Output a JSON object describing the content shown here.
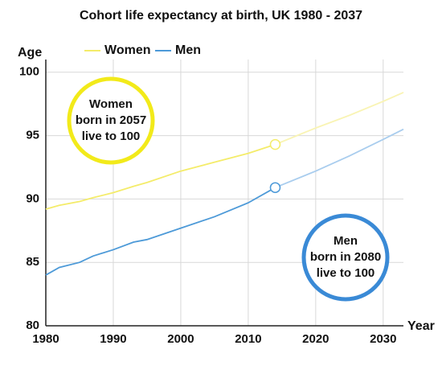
{
  "chart_data": {
    "type": "line",
    "title": "Cohort life expectancy at birth, UK 1980 - 2037",
    "y_label": "Age",
    "x_label": "Year",
    "x": [
      1980,
      1982,
      1985,
      1987,
      1990,
      1993,
      1995,
      2000,
      2005,
      2010,
      2014,
      2020,
      2025,
      2030,
      2033
    ],
    "series": [
      {
        "name": "Women",
        "color": "#f4ec6a",
        "projection_color": "#f9f4b4",
        "values": [
          89.2,
          89.5,
          89.8,
          90.1,
          90.5,
          91.0,
          91.3,
          92.2,
          92.9,
          93.6,
          94.3,
          null,
          null,
          null,
          null
        ],
        "projection": [
          null,
          null,
          null,
          null,
          null,
          null,
          null,
          null,
          null,
          null,
          94.3,
          95.6,
          96.6,
          97.7,
          98.4
        ]
      },
      {
        "name": "Men",
        "color": "#4d9ad8",
        "projection_color": "#a9cdee",
        "values": [
          84.0,
          84.6,
          85.0,
          85.5,
          86.0,
          86.6,
          86.8,
          87.7,
          88.6,
          89.7,
          90.9,
          null,
          null,
          null,
          null
        ],
        "projection": [
          null,
          null,
          null,
          null,
          null,
          null,
          null,
          null,
          null,
          null,
          90.9,
          92.2,
          93.4,
          94.7,
          95.5
        ]
      }
    ],
    "annotations": [
      {
        "lines": [
          "Women",
          "born in 2057",
          "live to 100"
        ],
        "color": "#f2ea1a"
      },
      {
        "lines": [
          "Men",
          "born in 2080",
          "live to 100"
        ],
        "color": "#3a8ad6"
      }
    ],
    "xlim": [
      1980,
      2033
    ],
    "xticks": [
      1980,
      1990,
      2000,
      2010,
      2020,
      2030
    ],
    "ylim": [
      80,
      101
    ],
    "yticks": [
      80,
      85,
      90,
      95,
      100
    ],
    "grid": true,
    "legend": "top-left"
  }
}
